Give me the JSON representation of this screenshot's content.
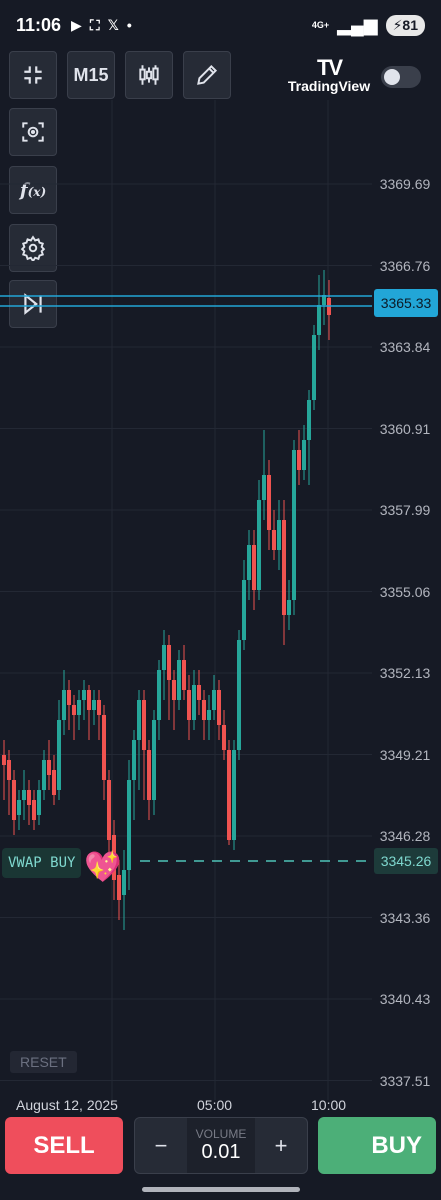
{
  "status_bar": {
    "time": "11:06",
    "network": "4G+",
    "battery": "81"
  },
  "toolbar": {
    "timeframe_label": "M15",
    "logo_mark": "TV",
    "logo_name": "TradingView",
    "icons": [
      "collapse-icon",
      "candles-icon",
      "pencil-icon",
      "focus-icon",
      "function-icon",
      "gear-icon",
      "skip-to-end-icon"
    ]
  },
  "chart": {
    "price_labels": [
      "3369.69",
      "3366.76",
      "3363.84",
      "3360.91",
      "3357.99",
      "3355.06",
      "3352.13",
      "3349.21",
      "3346.28",
      "3343.36",
      "3340.43",
      "3337.51"
    ],
    "current_price": "3365.33",
    "vwap_price": "3345.26",
    "vwap_tag": "VWAP BUY",
    "reset_label": "RESET",
    "time_labels": [
      "August 12, 2025",
      "05:00",
      "10:00"
    ],
    "colors": {
      "up": "#26a69a",
      "down": "#ef5350",
      "current_line": "#22a6d7",
      "vwap_line": "#4fc3b8"
    }
  },
  "trade_bar": {
    "sell_label": "SELL",
    "buy_label": "BUY",
    "volume_label": "VOLUME",
    "volume_value": "0.01",
    "minus_label": "−",
    "plus_label": "+"
  }
}
